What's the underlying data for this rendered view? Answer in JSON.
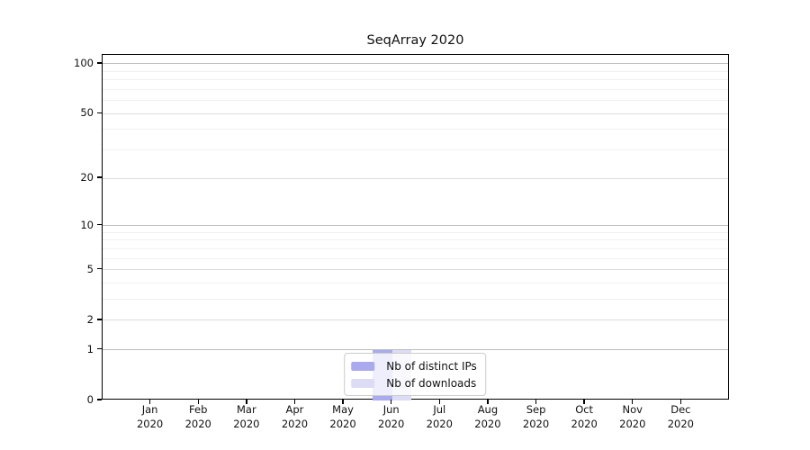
{
  "chart_data": {
    "type": "bar",
    "title": "SeqArray 2020",
    "categories": [
      "Jan",
      "Feb",
      "Mar",
      "Apr",
      "May",
      "Jun",
      "Jul",
      "Aug",
      "Sep",
      "Oct",
      "Nov",
      "Dec"
    ],
    "category_year": "2020",
    "series": [
      {
        "name": "Nb of distinct IPs",
        "color": "#aaaaee",
        "values": [
          0,
          0,
          0,
          0,
          0,
          1,
          0,
          0,
          0,
          0,
          0,
          0
        ]
      },
      {
        "name": "Nb of downloads",
        "color": "#dcdcf6",
        "values": [
          0,
          0,
          0,
          0,
          0,
          1,
          0,
          0,
          0,
          0,
          0,
          0
        ]
      }
    ],
    "xlabel": "",
    "ylabel": "",
    "y_scale": "log10(1+y)",
    "ylim": [
      0,
      113
    ],
    "y_major_ticks": [
      0,
      1,
      2,
      5,
      10,
      20,
      50,
      100
    ],
    "y_strong_gridlines": [
      1,
      10,
      100
    ],
    "y_medium_gridlines": [
      2,
      5,
      20,
      50
    ],
    "y_minor_gridlines": [
      3,
      4,
      6,
      7,
      8,
      9,
      30,
      40,
      60,
      70,
      80,
      90
    ],
    "grid": "horizontal",
    "legend_position": "lower center",
    "axis_color": "#000000",
    "gridline_colors": {
      "strong": "#bdbdbd",
      "medium": "#dcdcdc",
      "minor": "#f0f0f0"
    }
  }
}
